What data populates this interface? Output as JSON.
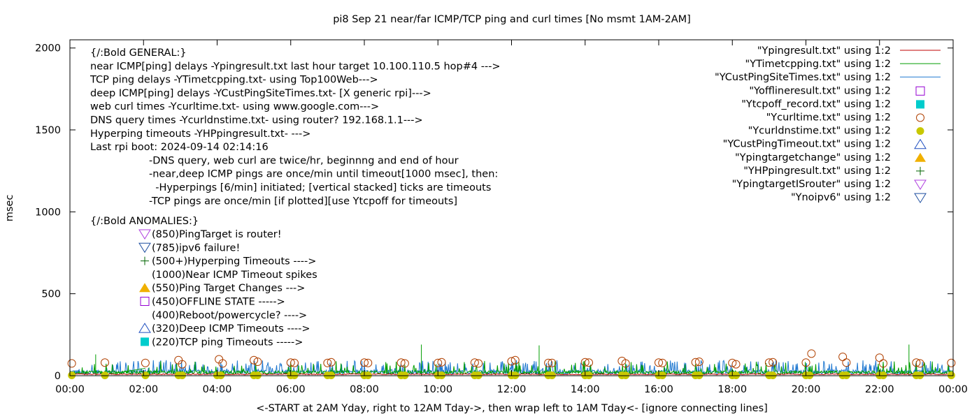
{
  "chart_data": {
    "type": "line",
    "title": "pi8 Sep 21  near/far ICMP/TCP ping and curl times [No msmt 1AM-2AM]",
    "xlabel": "<-START at 2AM Yday, right to 12AM Tday->, then wrap left to 1AM Tday<- [ignore connecting lines]",
    "ylabel": "msec",
    "xlim": [
      0,
      24
    ],
    "ylim": [
      0,
      2050
    ],
    "x_ticks": [
      "00:00",
      "02:00",
      "04:00",
      "06:00",
      "08:00",
      "10:00",
      "12:00",
      "14:00",
      "16:00",
      "18:00",
      "20:00",
      "22:00",
      "00:00"
    ],
    "y_ticks": [
      0,
      500,
      1000,
      1500,
      2000
    ],
    "legend_position": "top-right",
    "legend": [
      {
        "label": "\"Ypingresult.txt\" using 1:2",
        "style": "line",
        "color": "#c00000"
      },
      {
        "label": "\"YTimetcpping.txt\" using 1:2",
        "style": "line",
        "color": "#009e00"
      },
      {
        "label": "\"YCustPingSiteTimes.txt\" using 1:2",
        "style": "line",
        "color": "#1f78d0"
      },
      {
        "label": "\"Yofflineresult.txt\" using 1:2",
        "style": "open-square",
        "color": "#9400d3"
      },
      {
        "label": "\"Ytcpoff_record.txt\" using 1:2",
        "style": "filled-square",
        "color": "#00cccc"
      },
      {
        "label": "\"Ycurltime.txt\" using 1:2",
        "style": "open-circle",
        "color": "#b04000"
      },
      {
        "label": "\"Ycurldnstime.txt\" using 1:2",
        "style": "filled-circle",
        "color": "#c8c800"
      },
      {
        "label": "\"YCustPingTimeout.txt\" using 1:2",
        "style": "open-triangle-up",
        "color": "#1f4fc0"
      },
      {
        "label": "\"Ypingtargetchange\" using 1:2",
        "style": "filled-triangle-up",
        "color": "#f0b000"
      },
      {
        "label": "\"YHPpingresult.txt\" using 1:2",
        "style": "plus",
        "color": "#006400"
      },
      {
        "label": "\"YpingtargetISrouter\" using 1:2",
        "style": "open-triangle-down",
        "color": "#b040e0"
      },
      {
        "label": "\"Ynoipv6\" using 1:2",
        "style": "open-triangle-down",
        "color": "#1f4fa0"
      }
    ],
    "annotations": {
      "general": [
        "{/:Bold GENERAL:}",
        "near ICMP[ping] delays -Ypingresult.txt last hour target 10.100.110.5 hop#4 --->",
        "TCP ping delays -YTimetcpping.txt- using Top100Web--->",
        "deep ICMP[ping] delays -YCustPingSiteTimes.txt- [X generic rpi]--->",
        "web curl times -Ycurltime.txt- using www.google.com--->",
        "DNS query times -Ycurldnstime.txt- using router? 192.168.1.1--->",
        "Hyperping timeouts -YHPpingresult.txt- --->",
        "Last rpi boot: 2024-09-14 02:14:16"
      ],
      "notes": [
        "-DNS query, web curl are twice/hr, beginnng and end of hour",
        "-near,deep ICMP pings are once/min until timeout[1000 msec], then:",
        "  -Hyperpings [6/min] initiated; [vertical stacked] ticks are timeouts",
        "-TCP pings are once/min [if plotted][use Ytcpoff for timeouts]"
      ],
      "anomalies_title": "{/:Bold ANOMALIES:}",
      "anomalies": [
        {
          "text": "(850)PingTarget is router!",
          "marker": "open-triangle-down",
          "color": "#b040e0"
        },
        {
          "text": "(785)ipv6 failure!",
          "marker": "open-triangle-down",
          "color": "#1f4fa0"
        },
        {
          "text": "(500+)Hyperping Timeouts ---->",
          "marker": "plus",
          "color": "#006400"
        },
        {
          "text": "(1000)Near ICMP Timeout spikes",
          "marker": "none",
          "color": ""
        },
        {
          "text": "(550)Ping Target Changes --->",
          "marker": "filled-triangle-up",
          "color": "#f0b000"
        },
        {
          "text": "(450)OFFLINE STATE ----->",
          "marker": "open-square",
          "color": "#9400d3"
        },
        {
          "text": "(400)Reboot/powercycle? ---->",
          "marker": "none",
          "color": ""
        },
        {
          "text": "(320)Deep ICMP Timeouts ---->",
          "marker": "open-triangle-up",
          "color": "#1f4fc0"
        },
        {
          "text": "(220)TCP ping Timeouts ----->",
          "marker": "filled-square",
          "color": "#00cccc"
        }
      ]
    },
    "series": {
      "ycurltime_hours": [
        0.05,
        0.95,
        2.05,
        2.95,
        3.05,
        4.05,
        4.15,
        5.0,
        5.1,
        6.0,
        6.1,
        7.0,
        7.1,
        8.0,
        8.1,
        9.0,
        9.1,
        10.0,
        10.1,
        11.0,
        11.1,
        12.0,
        12.1,
        13.0,
        13.1,
        14.0,
        14.1,
        15.0,
        15.1,
        16.0,
        16.1,
        17.0,
        17.1,
        18.0,
        18.1,
        19.0,
        19.1,
        20.0,
        20.15,
        21.0,
        21.1,
        22.0,
        22.1,
        23.0,
        23.1,
        23.95
      ],
      "ycurltime_msec": [
        75,
        80,
        78,
        95,
        70,
        100,
        75,
        95,
        85,
        80,
        78,
        78,
        82,
        80,
        78,
        80,
        75,
        78,
        82,
        80,
        75,
        88,
        95,
        78,
        78,
        82,
        80,
        90,
        75,
        80,
        78,
        82,
        85,
        78,
        70,
        80,
        82,
        80,
        135,
        115,
        80,
        110,
        75,
        80,
        75,
        78
      ],
      "ycurldnstime_hours": [
        0.05,
        0.95,
        2.05,
        2.95,
        3.05,
        4.0,
        4.1,
        5.0,
        5.1,
        6.0,
        6.1,
        7.0,
        7.1,
        8.0,
        8.1,
        9.0,
        9.1,
        10.0,
        10.1,
        11.0,
        11.1,
        12.0,
        12.1,
        13.0,
        13.1,
        14.0,
        14.1,
        15.0,
        15.1,
        16.0,
        16.1,
        17.0,
        17.1,
        18.0,
        18.1,
        19.0,
        19.1,
        20.0,
        20.1,
        21.0,
        21.1,
        22.0,
        22.1,
        23.0,
        23.1,
        23.95
      ],
      "ycurldnstime_msec": [
        2,
        2,
        2,
        2,
        2,
        2,
        2,
        2,
        2,
        2,
        2,
        2,
        2,
        2,
        2,
        2,
        2,
        2,
        2,
        2,
        2,
        2,
        2,
        2,
        2,
        2,
        2,
        2,
        2,
        2,
        2,
        2,
        2,
        2,
        2,
        2,
        2,
        2,
        2,
        2,
        2,
        2,
        2,
        2,
        2,
        2
      ],
      "tcp_spikes_hours": [
        0.7,
        2.15,
        9.55,
        12.75,
        22.8
      ],
      "tcp_spikes_msec": [
        130,
        50,
        190,
        185,
        190
      ],
      "ping_baseline_msec": 10,
      "tcp_baseline_msec": 25,
      "custping_baseline_msec": 30,
      "custping_peak_msec": 95
    }
  }
}
